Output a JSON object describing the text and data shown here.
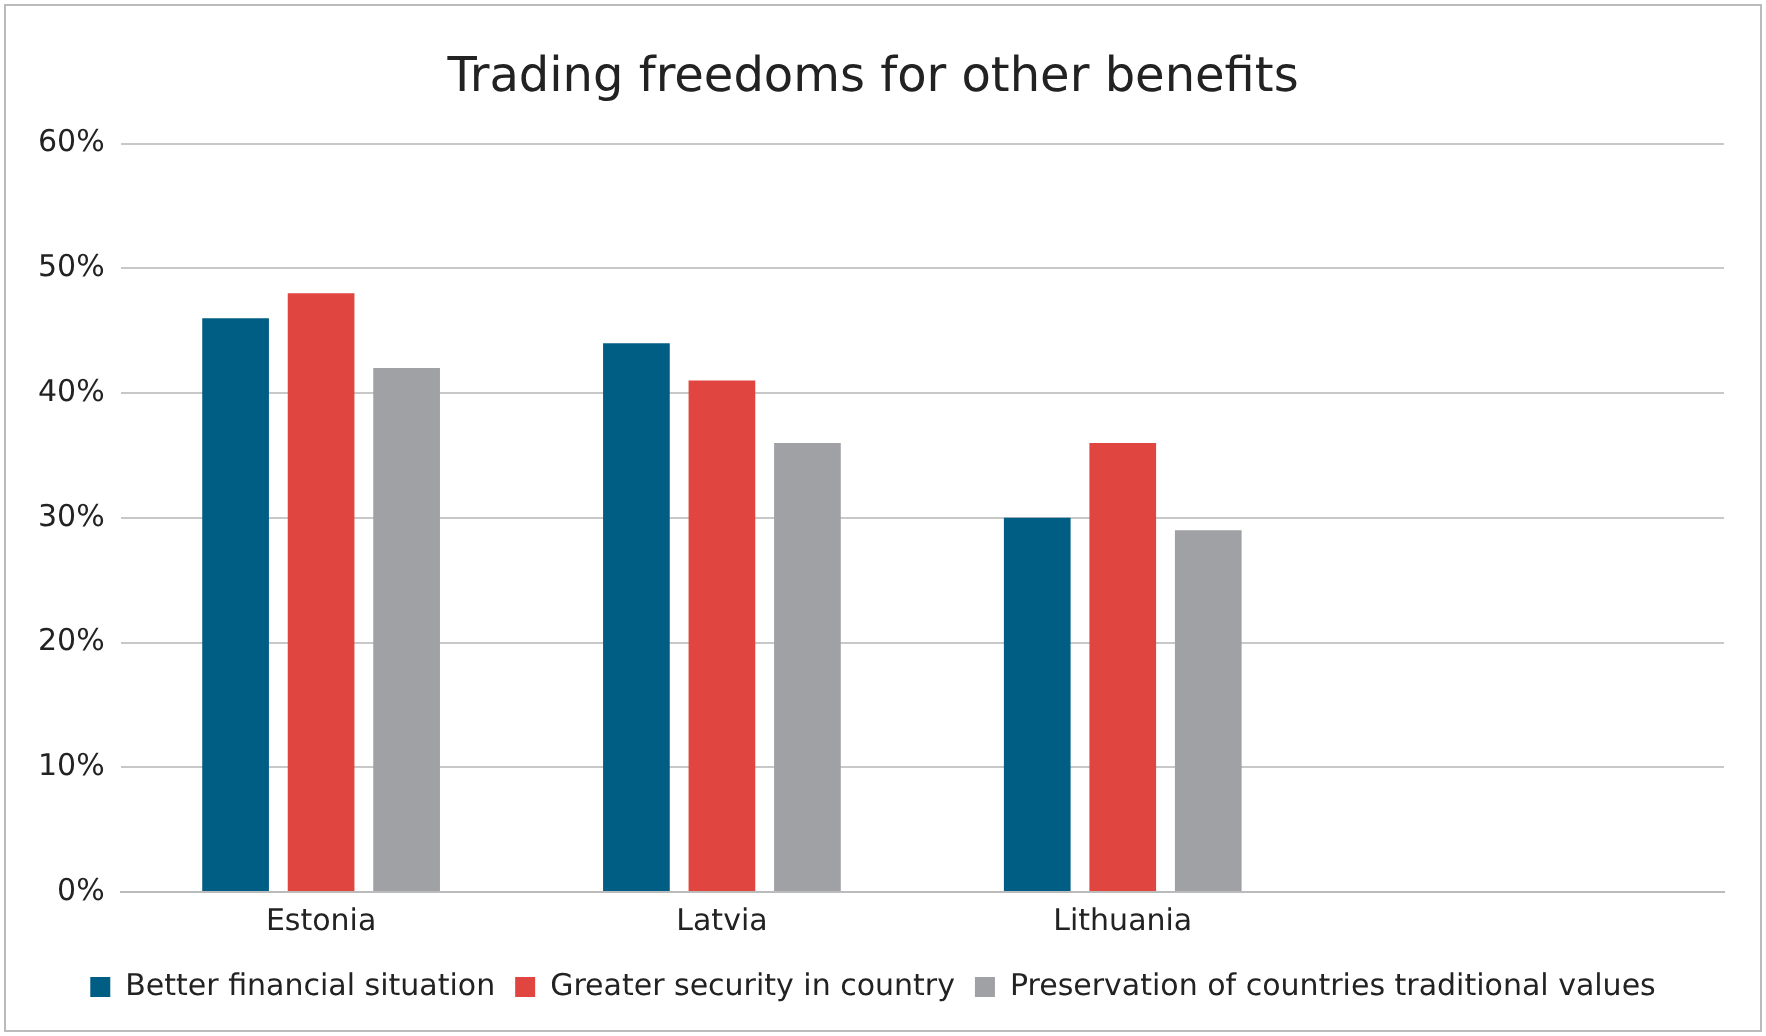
{
  "chart_data": {
    "type": "bar",
    "title": "Trading freedoms for other benefits",
    "categories": [
      "Estonia",
      "Latvia",
      "Lithuania",
      null
    ],
    "series": [
      {
        "name": "Better financial situation",
        "color": "#005e85",
        "values": [
          46,
          44,
          30,
          null
        ]
      },
      {
        "name": "Greater security in country",
        "color": "#e0463f",
        "values": [
          48,
          41,
          36,
          null
        ]
      },
      {
        "name": "Preservation of countries traditional values",
        "color": "#a0a1a5",
        "values": [
          42,
          36,
          29,
          null
        ]
      }
    ],
    "ylim": [
      0,
      60
    ],
    "yticks": [
      {
        "value": 0,
        "label": "0%"
      },
      {
        "value": 10,
        "label": "10%"
      },
      {
        "value": 20,
        "label": "20%"
      },
      {
        "value": 30,
        "label": "30%"
      },
      {
        "value": 40,
        "label": "40%"
      },
      {
        "value": 50,
        "label": "50%"
      },
      {
        "value": 60,
        "label": "60%"
      }
    ],
    "grid": "y",
    "legend": "bottom"
  }
}
